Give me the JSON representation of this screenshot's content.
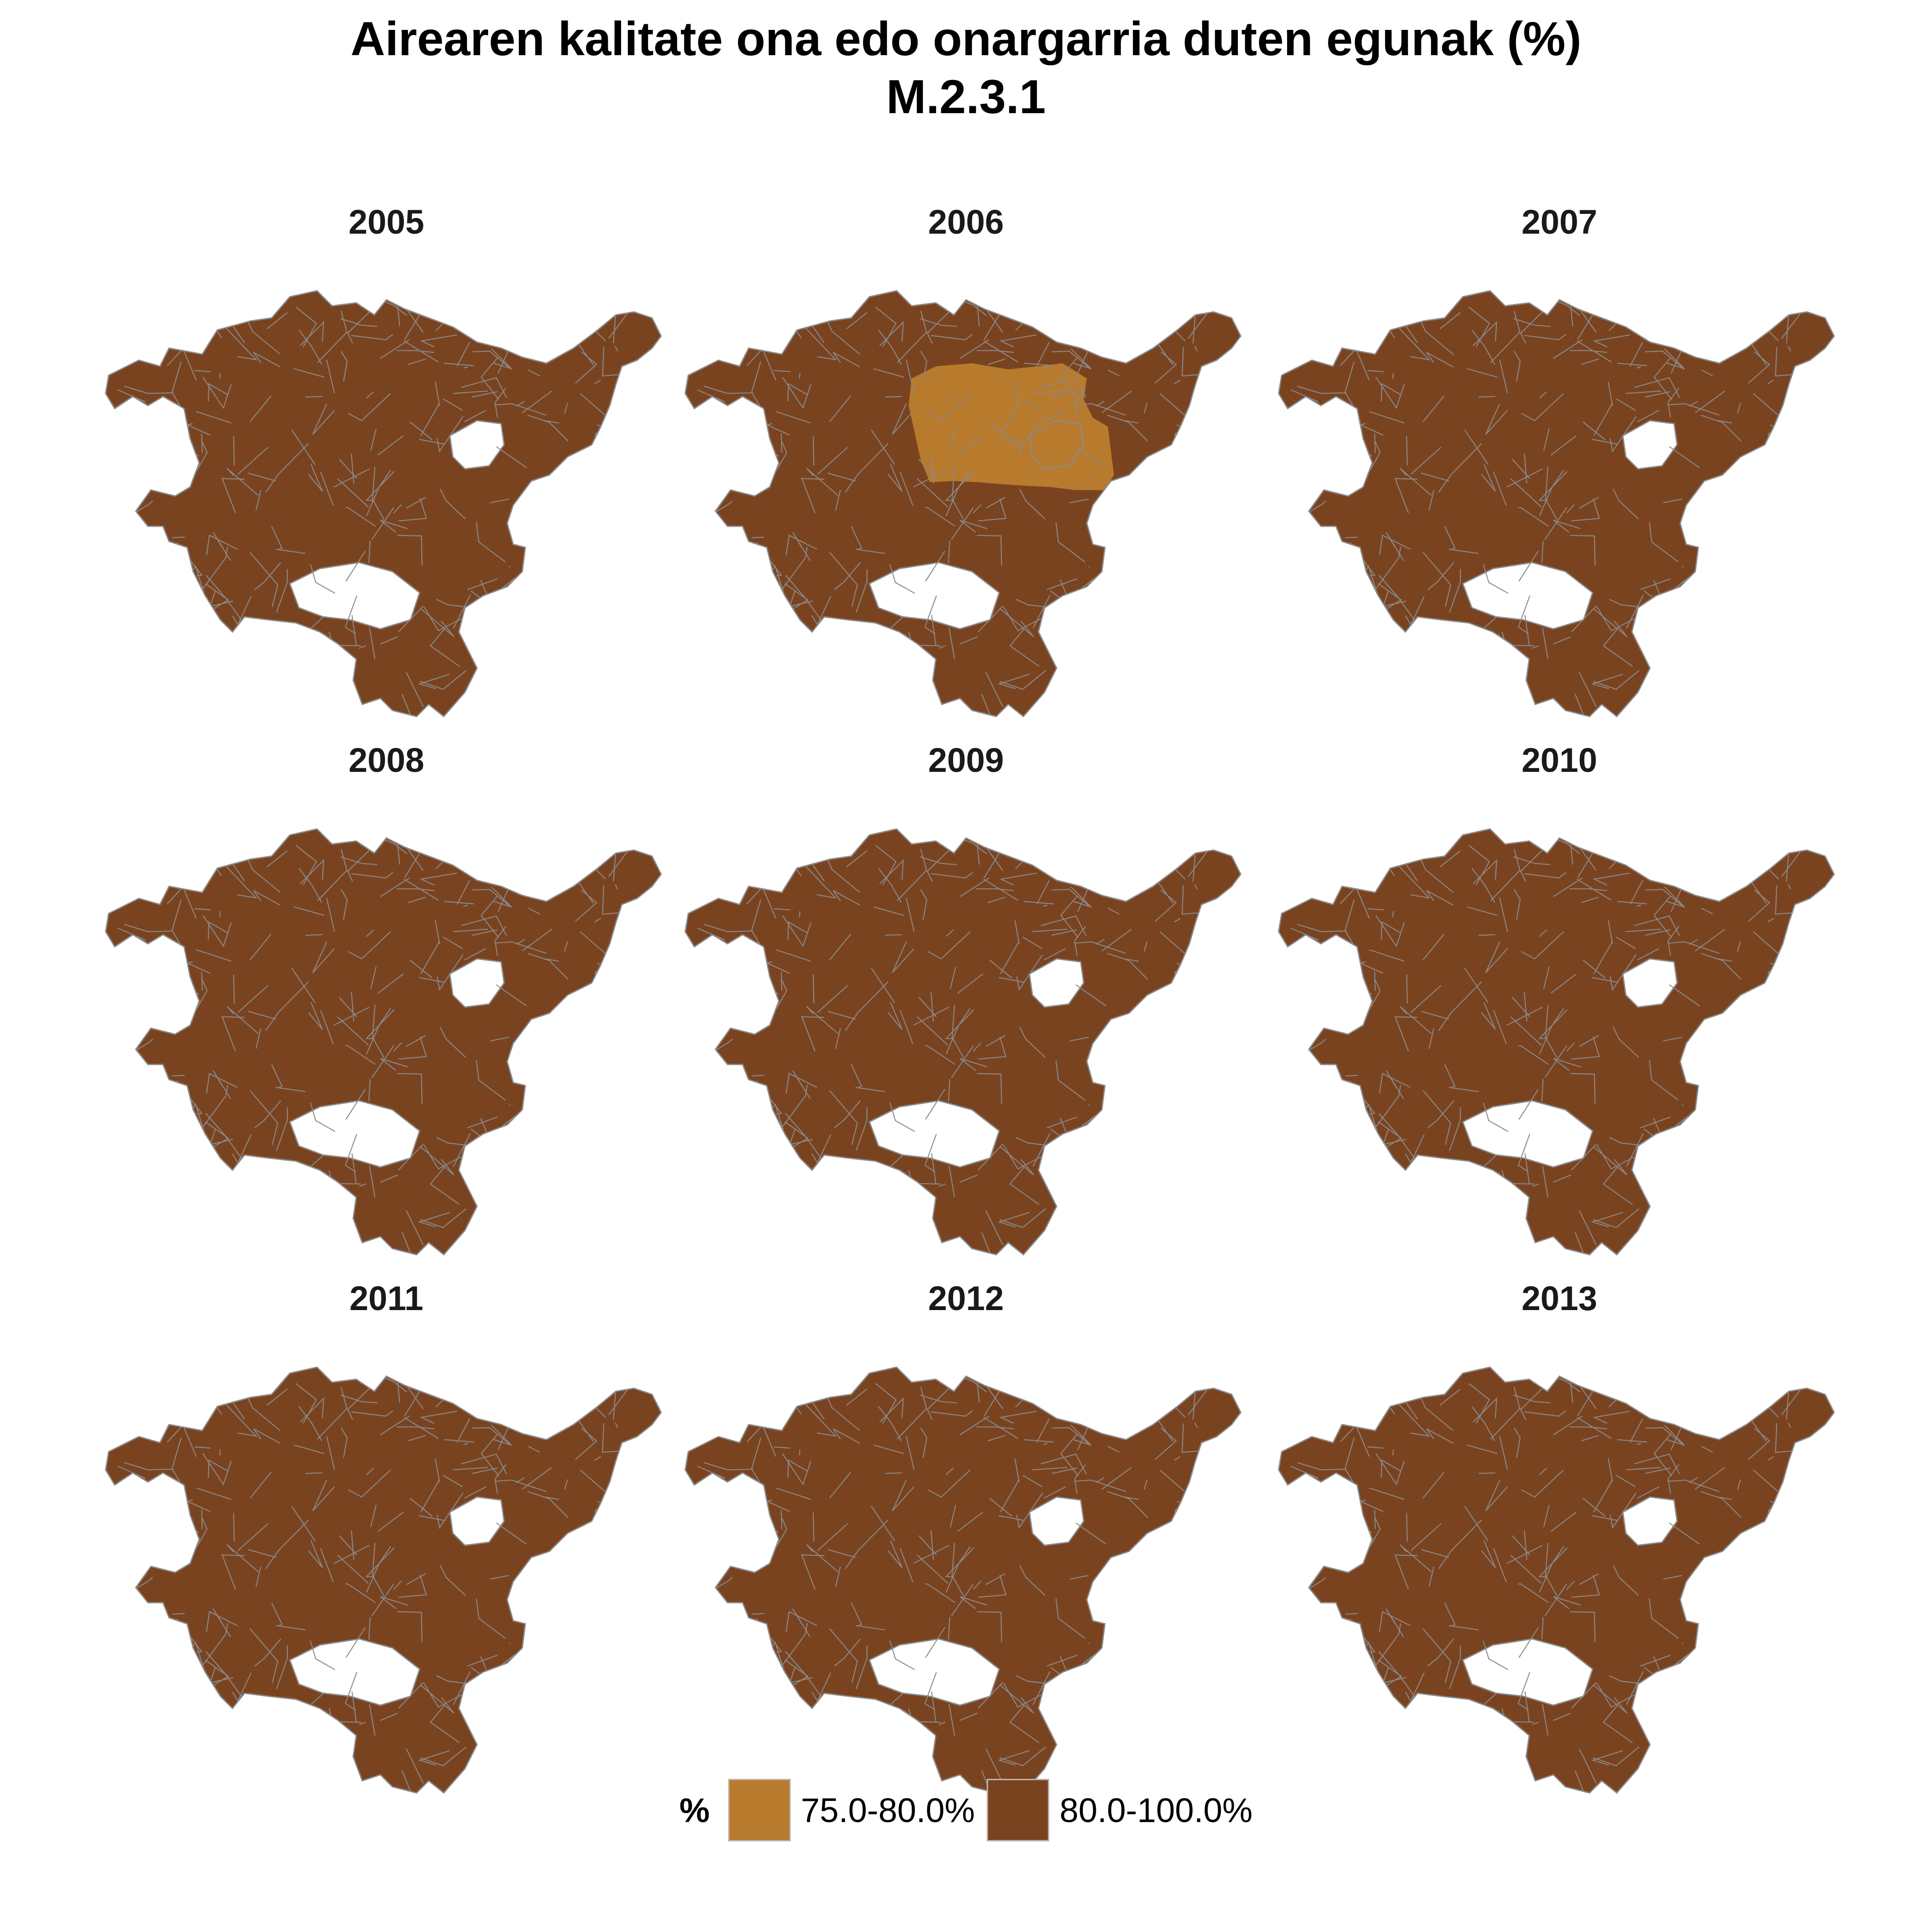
{
  "title": {
    "line1": "Airearen kalitate ona edo onargarria duten egunak (%)",
    "line2": "M.2.3.1"
  },
  "colors": {
    "low_class": "#b87a2d",
    "high_class": "#7a4320",
    "borders": "#8a8a8a",
    "background": "#ffffff"
  },
  "legend": {
    "title": "%",
    "items": [
      {
        "label": "75.0-80.0%",
        "color": "#b87a2d"
      },
      {
        "label": "80.0-100.0%",
        "color": "#7a4320"
      }
    ]
  },
  "panels": [
    {
      "year": "2005",
      "low_class_area": false
    },
    {
      "year": "2006",
      "low_class_area": true
    },
    {
      "year": "2007",
      "low_class_area": false
    },
    {
      "year": "2008",
      "low_class_area": false
    },
    {
      "year": "2009",
      "low_class_area": false
    },
    {
      "year": "2010",
      "low_class_area": false
    },
    {
      "year": "2011",
      "low_class_area": false
    },
    {
      "year": "2012",
      "low_class_area": false
    },
    {
      "year": "2013",
      "low_class_area": false
    }
  ]
}
